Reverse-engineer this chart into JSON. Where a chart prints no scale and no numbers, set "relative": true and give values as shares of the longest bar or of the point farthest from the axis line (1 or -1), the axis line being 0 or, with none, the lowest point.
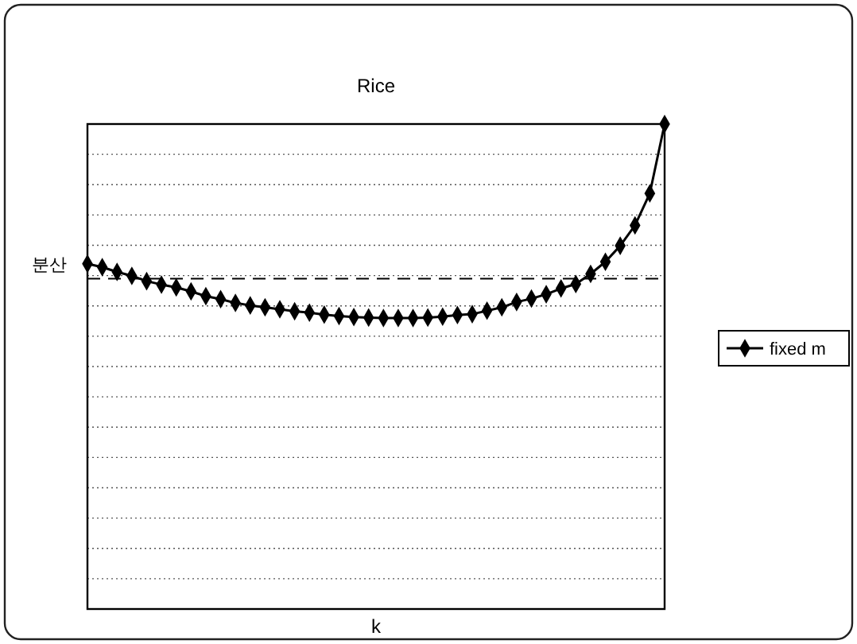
{
  "chart_data": {
    "type": "line",
    "title": "Rice",
    "xlabel": "k",
    "ylabel": "분산",
    "relative": true,
    "categories": [
      null,
      null,
      null,
      null,
      null,
      null,
      null,
      null,
      null,
      null,
      null,
      null,
      null,
      null,
      null,
      null,
      null,
      null,
      null,
      null,
      null,
      null,
      null,
      null,
      null,
      null,
      null,
      null,
      null,
      null,
      null,
      null,
      null,
      null,
      null,
      null,
      null,
      null,
      null,
      null
    ],
    "series": [
      {
        "name": "fixed m",
        "color": "#000000",
        "values": [
          0.712,
          0.705,
          0.695,
          0.687,
          0.676,
          0.669,
          0.663,
          0.655,
          0.645,
          0.639,
          0.631,
          0.626,
          0.622,
          0.618,
          0.614,
          0.611,
          0.607,
          0.604,
          0.602,
          0.601,
          0.6,
          0.6,
          0.6,
          0.601,
          0.603,
          0.606,
          0.608,
          0.615,
          0.622,
          0.633,
          0.64,
          0.649,
          0.661,
          0.67,
          0.691,
          0.716,
          0.749,
          0.791,
          0.857,
          1
        ]
      }
    ],
    "ref_lines": [
      {
        "axis": "y",
        "value": 0.681,
        "line_style": "dashed",
        "color": "#000000"
      }
    ],
    "grid": "y",
    "legend": "right",
    "marker": "diamond",
    "line_style": "solid"
  }
}
